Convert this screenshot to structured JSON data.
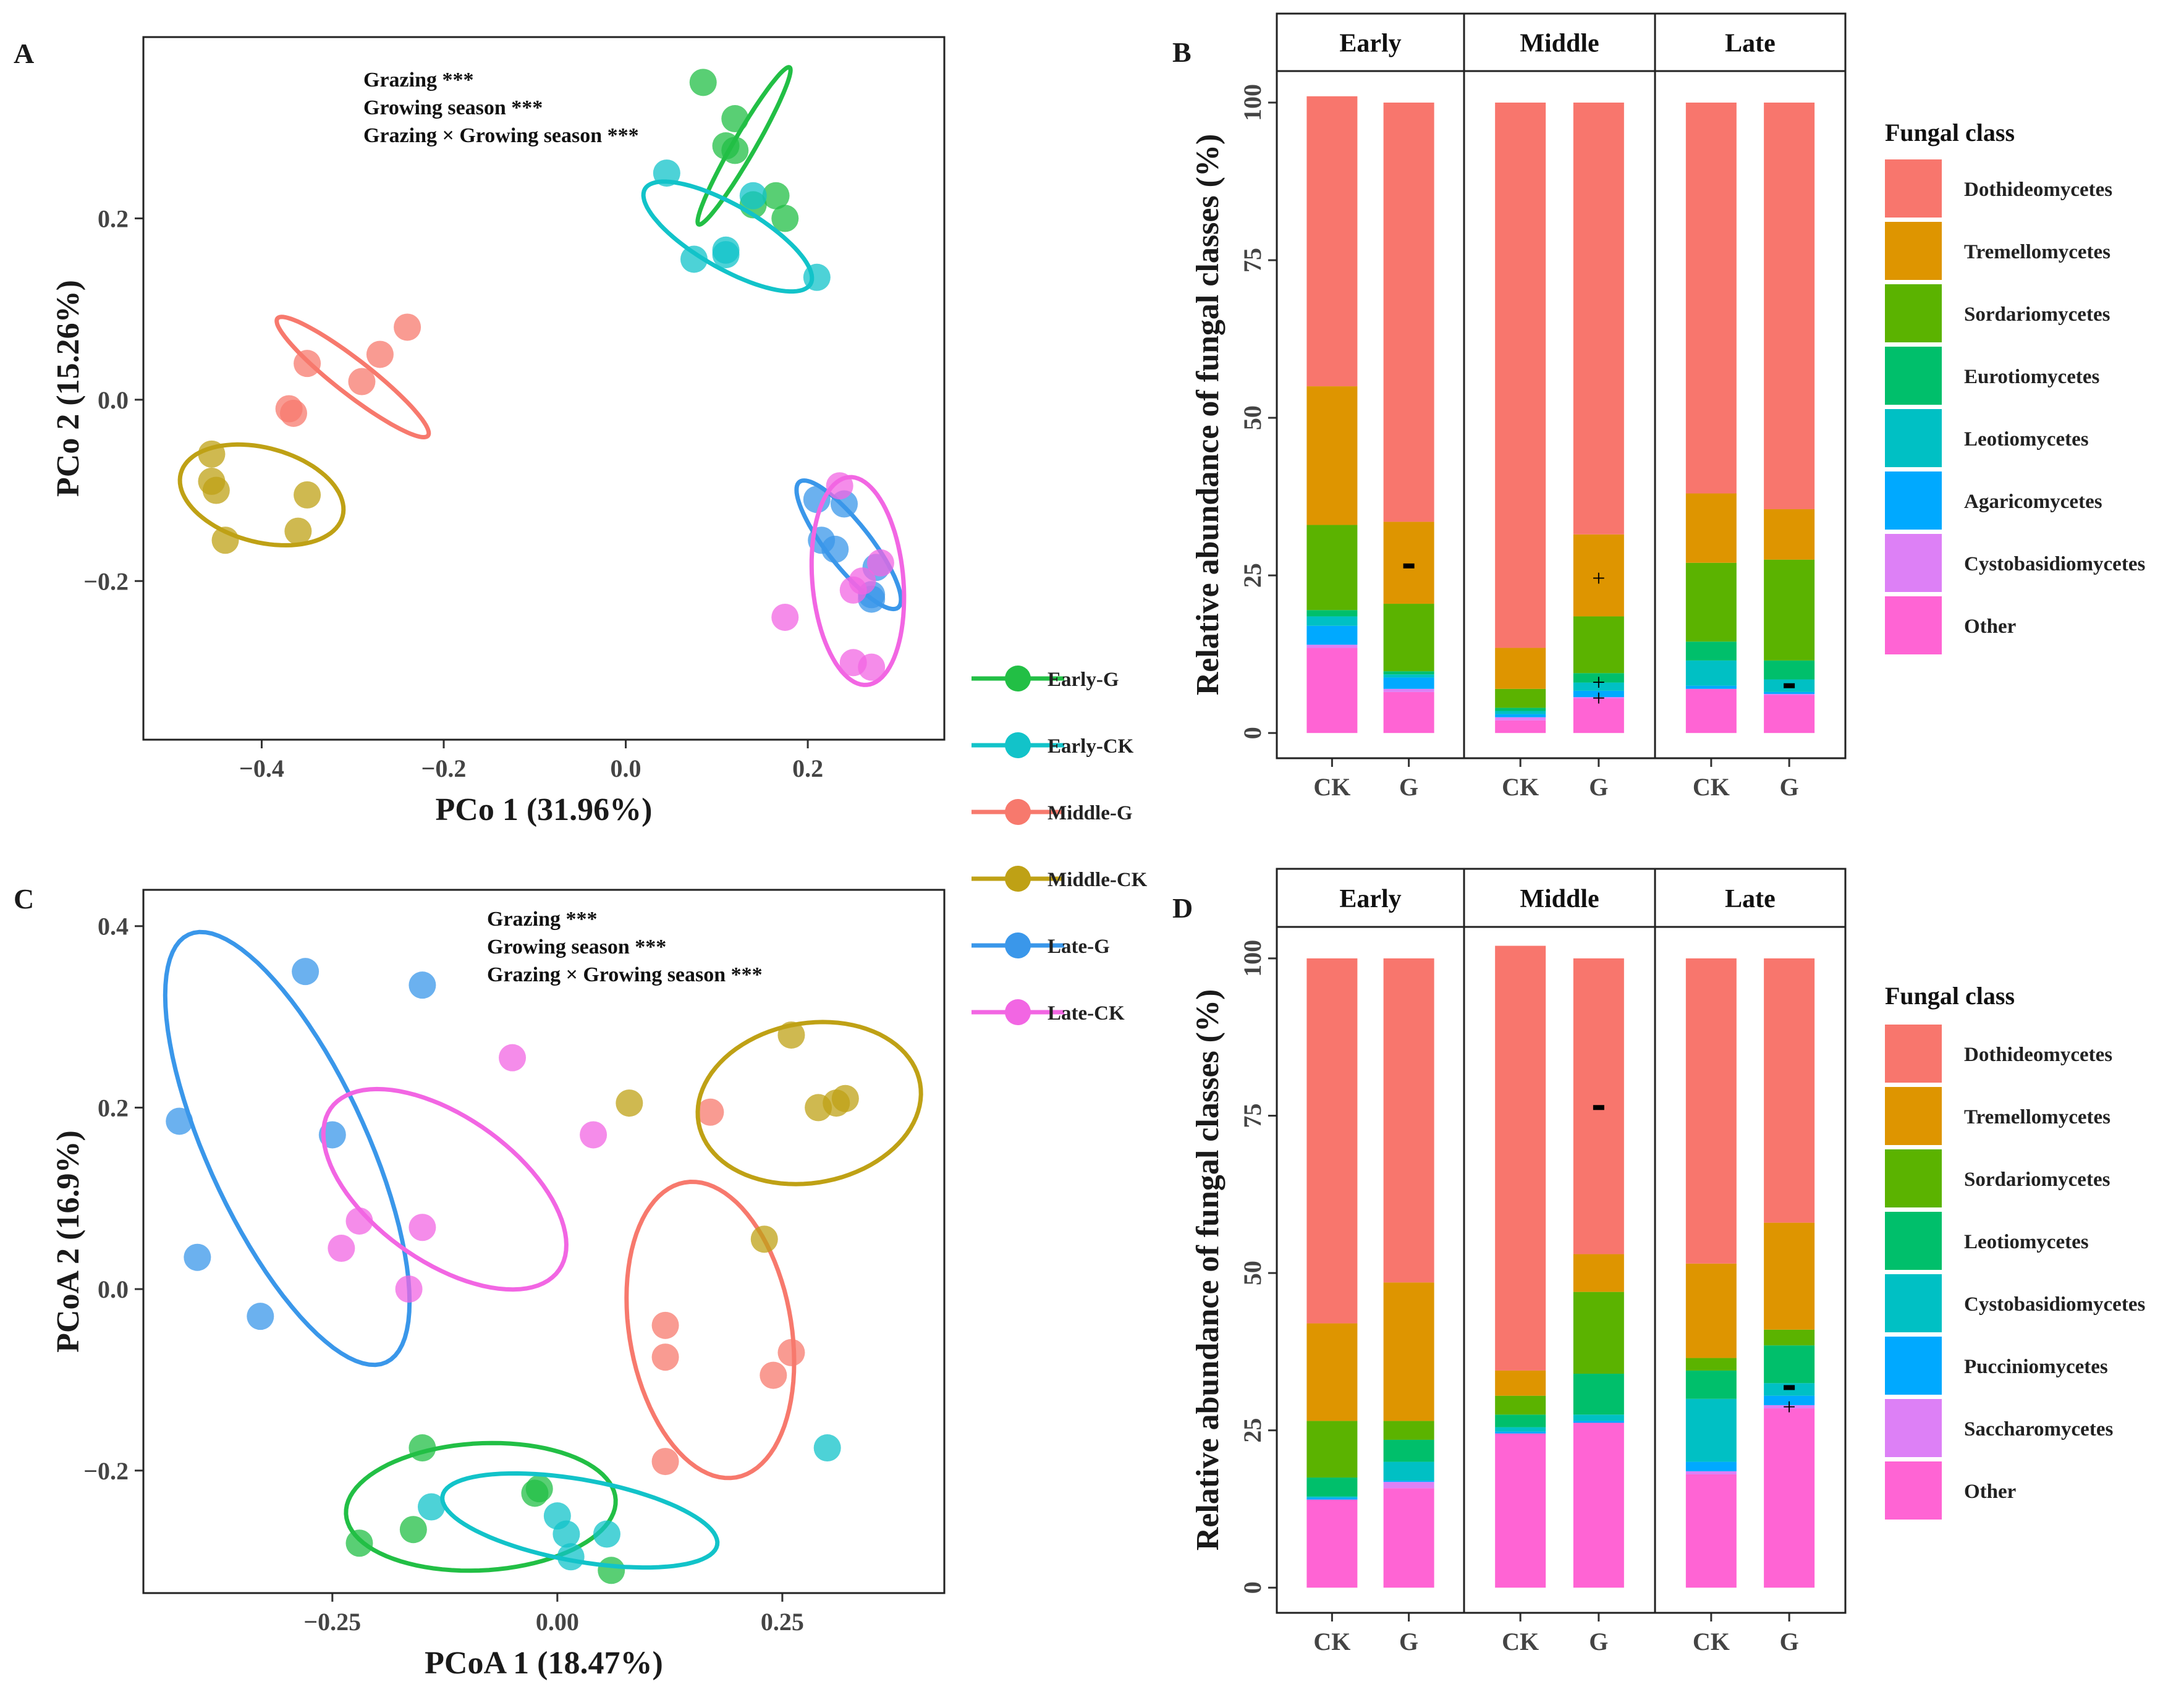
{
  "colors": {
    "Early-G": "#22BF45",
    "Early-CK": "#12C3C9",
    "Middle-G": "#F7796D",
    "Middle-CK": "#BFA115",
    "Late-G": "#3A97EA",
    "Late-CK": "#F266E3",
    "Dothideomycetes": "#F8766D",
    "Tremellomycetes": "#DE9500",
    "Sordariomycetes": "#5BB300",
    "Eurotiomycetes": "#00BF6B",
    "Leotiomycetes_B": "#00C0C4",
    "Leotiomycetes_D": "#00BF6B",
    "Cystobasidiomycetes_D": "#00C0C4",
    "Agaricomycetes": "#00A9FF",
    "Pucciniomycetes": "#00A9FF",
    "Cystobasidiomycetes_B": "#DD80F6",
    "Saccharomycetes": "#DD80F6",
    "Other": "#FF64D4"
  },
  "group_legend": {
    "items": [
      "Early-G",
      "Early-CK",
      "Middle-G",
      "Middle-CK",
      "Late-G",
      "Late-CK"
    ]
  },
  "chart_data": [
    {
      "panel": "A",
      "type": "scatter",
      "xlabel": "PCo 1 (31.96%)",
      "ylabel": "PCo 2 (15.26%)",
      "xlim": [
        -0.53,
        0.35
      ],
      "ylim": [
        -0.375,
        0.4
      ],
      "xticks": [
        -0.4,
        -0.2,
        0.0,
        0.2
      ],
      "xtick_labels": [
        "−0.4",
        "−0.2",
        "0.0",
        "0.2"
      ],
      "yticks": [
        -0.2,
        0.0,
        0.2
      ],
      "ytick_labels": [
        "−0.2",
        "0.0",
        "0.2"
      ],
      "stats": [
        "Grazing ***",
        "Growing season ***",
        "Grazing × Growing season ***"
      ],
      "series": [
        {
          "name": "Early-G",
          "points": [
            [
              0.085,
              0.35
            ],
            [
              0.12,
              0.31
            ],
            [
              0.11,
              0.28
            ],
            [
              0.12,
              0.275
            ],
            [
              0.165,
              0.225
            ],
            [
              0.14,
              0.215
            ],
            [
              0.175,
              0.2
            ]
          ],
          "ellipse": {
            "cx": 0.13,
            "cy": 0.28,
            "rx": 0.1,
            "ry": 0.012,
            "angle": 60
          }
        },
        {
          "name": "Early-CK",
          "points": [
            [
              0.045,
              0.25
            ],
            [
              0.075,
              0.155
            ],
            [
              0.11,
              0.165
            ],
            [
              0.11,
              0.16
            ],
            [
              0.14,
              0.225
            ],
            [
              0.21,
              0.135
            ]
          ],
          "ellipse": {
            "cx": 0.112,
            "cy": 0.18,
            "rx": 0.105,
            "ry": 0.035,
            "angle": -30
          }
        },
        {
          "name": "Middle-G",
          "points": [
            [
              -0.24,
              0.08
            ],
            [
              -0.27,
              0.05
            ],
            [
              -0.29,
              0.02
            ],
            [
              -0.35,
              0.04
            ],
            [
              -0.365,
              -0.015
            ],
            [
              -0.37,
              -0.01
            ]
          ],
          "ellipse": {
            "cx": -0.3,
            "cy": 0.025,
            "rx": 0.105,
            "ry": 0.019,
            "angle": -38
          }
        },
        {
          "name": "Middle-CK",
          "points": [
            [
              -0.455,
              -0.06
            ],
            [
              -0.455,
              -0.09
            ],
            [
              -0.45,
              -0.1
            ],
            [
              -0.35,
              -0.105
            ],
            [
              -0.36,
              -0.145
            ],
            [
              -0.44,
              -0.155
            ]
          ],
          "ellipse": {
            "cx": -0.4,
            "cy": -0.105,
            "rx": 0.092,
            "ry": 0.052,
            "angle": -15
          }
        },
        {
          "name": "Late-G",
          "points": [
            [
              0.21,
              -0.11
            ],
            [
              0.24,
              -0.115
            ],
            [
              0.215,
              -0.155
            ],
            [
              0.23,
              -0.165
            ],
            [
              0.275,
              -0.185
            ],
            [
              0.27,
              -0.215
            ],
            [
              0.27,
              -0.22
            ]
          ],
          "ellipse": {
            "cx": 0.245,
            "cy": -0.16,
            "rx": 0.088,
            "ry": 0.024,
            "angle": -52
          }
        },
        {
          "name": "Late-CK",
          "points": [
            [
              0.235,
              -0.095
            ],
            [
              0.28,
              -0.18
            ],
            [
              0.26,
              -0.2
            ],
            [
              0.25,
              -0.21
            ],
            [
              0.175,
              -0.24
            ],
            [
              0.25,
              -0.29
            ],
            [
              0.27,
              -0.295
            ]
          ],
          "ellipse": {
            "cx": 0.255,
            "cy": -0.2,
            "rx": 0.115,
            "ry": 0.05,
            "angle": -85
          }
        }
      ]
    },
    {
      "panel": "B",
      "type": "stacked_bar",
      "ylabel": "Relative abundance of fungal classes (%)",
      "ylim": [
        -4,
        105
      ],
      "yticks": [
        0,
        25,
        50,
        75,
        100
      ],
      "facets": [
        "Early",
        "Middle",
        "Late"
      ],
      "categories": [
        "CK",
        "G"
      ],
      "legend_title": "Fungal class",
      "classes": [
        "Dothideomycetes",
        "Tremellomycetes",
        "Sordariomycetes",
        "Eurotiomycetes",
        "Leotiomycetes",
        "Agaricomycetes",
        "Cystobasidiomycetes",
        "Other"
      ],
      "class_colors": [
        "Dothideomycetes",
        "Tremellomycetes",
        "Sordariomycetes",
        "Eurotiomycetes",
        "Leotiomycetes_B",
        "Agaricomycetes",
        "Cystobasidiomycetes_B",
        "Other"
      ],
      "bars": [
        {
          "facet": "Early",
          "cat": "CK",
          "values": [
            46.0,
            22.0,
            13.5,
            1.0,
            1.5,
            3.0,
            0.5,
            13.5
          ]
        },
        {
          "facet": "Early",
          "cat": "G",
          "values": [
            66.5,
            13.0,
            10.7,
            0.5,
            0.5,
            1.8,
            0.5,
            6.5
          ]
        },
        {
          "facet": "Middle",
          "cat": "CK",
          "values": [
            86.5,
            6.5,
            3.0,
            0.5,
            0.5,
            0.5,
            0.5,
            2.0
          ]
        },
        {
          "facet": "Middle",
          "cat": "G",
          "values": [
            68.5,
            13.0,
            9.0,
            1.5,
            1.3,
            1.0,
            0.2,
            5.5
          ]
        },
        {
          "facet": "Late",
          "cat": "CK",
          "values": [
            62.0,
            11.0,
            12.5,
            3.0,
            4.0,
            0.5,
            0.0,
            7.0
          ]
        },
        {
          "facet": "Late",
          "cat": "G",
          "values": [
            64.5,
            8.0,
            16.0,
            3.0,
            2.0,
            0.3,
            0.2,
            6.0
          ]
        }
      ],
      "annotations": [
        {
          "facet": "Early",
          "cat": "G",
          "y": 26.5,
          "text": "-"
        },
        {
          "facet": "Middle",
          "cat": "G",
          "y": 24.5,
          "text": "+"
        },
        {
          "facet": "Middle",
          "cat": "G",
          "y": 8.0,
          "text": "+"
        },
        {
          "facet": "Middle",
          "cat": "G",
          "y": 5.5,
          "text": "+"
        },
        {
          "facet": "Late",
          "cat": "G",
          "y": 7.5,
          "text": "-"
        }
      ]
    },
    {
      "panel": "C",
      "type": "scatter",
      "xlabel": "PCoA 1 (18.47%)",
      "ylabel": "PCoA 2 (16.9%)",
      "xlim": [
        -0.46,
        0.43
      ],
      "ylim": [
        -0.335,
        0.44
      ],
      "xticks": [
        -0.25,
        0.0,
        0.25
      ],
      "xtick_labels": [
        "−0.25",
        "0.00",
        "0.25"
      ],
      "yticks": [
        -0.2,
        0.0,
        0.2,
        0.4
      ],
      "ytick_labels": [
        "−0.2",
        "0.0",
        "0.2",
        "0.4"
      ],
      "stats": [
        "Grazing ***",
        "Growing season ***",
        "Grazing × Growing season ***"
      ],
      "series": [
        {
          "name": "Early-G",
          "points": [
            [
              -0.15,
              -0.175
            ],
            [
              -0.22,
              -0.28
            ],
            [
              -0.16,
              -0.265
            ],
            [
              -0.02,
              -0.22
            ],
            [
              -0.025,
              -0.225
            ],
            [
              0.06,
              -0.31
            ]
          ],
          "ellipse": {
            "cx": -0.085,
            "cy": -0.24,
            "rx": 0.15,
            "ry": 0.07,
            "angle": 3
          }
        },
        {
          "name": "Early-CK",
          "points": [
            [
              -0.14,
              -0.24
            ],
            [
              0.0,
              -0.25
            ],
            [
              0.01,
              -0.27
            ],
            [
              0.015,
              -0.295
            ],
            [
              0.055,
              -0.27
            ],
            [
              0.3,
              -0.175
            ]
          ],
          "ellipse": {
            "cx": 0.025,
            "cy": -0.255,
            "rx": 0.155,
            "ry": 0.045,
            "angle": -10
          }
        },
        {
          "name": "Middle-G",
          "points": [
            [
              0.17,
              0.195
            ],
            [
              0.12,
              -0.04
            ],
            [
              0.12,
              -0.075
            ],
            [
              0.26,
              -0.07
            ],
            [
              0.24,
              -0.095
            ],
            [
              0.12,
              -0.19
            ]
          ],
          "ellipse": {
            "cx": 0.17,
            "cy": -0.045,
            "rx": 0.165,
            "ry": 0.09,
            "angle": -80
          }
        },
        {
          "name": "Middle-CK",
          "points": [
            [
              0.08,
              0.205
            ],
            [
              0.26,
              0.28
            ],
            [
              0.29,
              0.2
            ],
            [
              0.31,
              0.205
            ],
            [
              0.32,
              0.21
            ],
            [
              0.23,
              0.055
            ]
          ],
          "ellipse": {
            "cx": 0.28,
            "cy": 0.205,
            "rx": 0.125,
            "ry": 0.088,
            "angle": 10
          }
        },
        {
          "name": "Late-G",
          "points": [
            [
              -0.28,
              0.35
            ],
            [
              -0.15,
              0.335
            ],
            [
              -0.42,
              0.185
            ],
            [
              -0.25,
              0.17
            ],
            [
              -0.4,
              0.035
            ],
            [
              -0.33,
              -0.03
            ]
          ],
          "ellipse": {
            "cx": -0.3,
            "cy": 0.155,
            "rx": 0.26,
            "ry": 0.088,
            "angle": -65
          }
        },
        {
          "name": "Late-CK",
          "points": [
            [
              -0.05,
              0.255
            ],
            [
              0.04,
              0.17
            ],
            [
              -0.22,
              0.075
            ],
            [
              -0.15,
              0.068
            ],
            [
              -0.24,
              0.045
            ],
            [
              -0.165,
              0.0
            ]
          ],
          "ellipse": {
            "cx": -0.125,
            "cy": 0.11,
            "rx": 0.155,
            "ry": 0.08,
            "angle": -35
          }
        }
      ]
    },
    {
      "panel": "D",
      "type": "stacked_bar",
      "ylabel": "Relative abundance of fungal classes (%)",
      "ylim": [
        -4,
        105
      ],
      "yticks": [
        0,
        25,
        50,
        75,
        100
      ],
      "facets": [
        "Early",
        "Middle",
        "Late"
      ],
      "categories": [
        "CK",
        "G"
      ],
      "legend_title": "Fungal class",
      "classes": [
        "Dothideomycetes",
        "Tremellomycetes",
        "Sordariomycetes",
        "Leotiomycetes",
        "Cystobasidiomycetes",
        "Pucciniomycetes",
        "Saccharomycetes",
        "Other"
      ],
      "class_colors": [
        "Dothideomycetes",
        "Tremellomycetes",
        "Sordariomycetes",
        "Leotiomycetes_D",
        "Cystobasidiomycetes_D",
        "Pucciniomycetes",
        "Saccharomycetes",
        "Other"
      ],
      "bars": [
        {
          "facet": "Early",
          "cat": "CK",
          "values": [
            58.0,
            15.5,
            9.0,
            3.0,
            0.2,
            0.3,
            0.0,
            14.0
          ]
        },
        {
          "facet": "Early",
          "cat": "G",
          "values": [
            51.5,
            22.0,
            3.0,
            3.5,
            3.0,
            0.2,
            1.0,
            15.8
          ]
        },
        {
          "facet": "Middle",
          "cat": "CK",
          "values": [
            67.5,
            4.0,
            3.0,
            2.0,
            0.7,
            0.3,
            0.0,
            24.5
          ]
        },
        {
          "facet": "Middle",
          "cat": "G",
          "values": [
            47.0,
            6.0,
            13.0,
            6.5,
            1.0,
            0.3,
            0.0,
            26.2
          ]
        },
        {
          "facet": "Late",
          "cat": "CK",
          "values": [
            48.5,
            15.0,
            2.0,
            4.5,
            10.0,
            1.5,
            0.5,
            18.0
          ]
        },
        {
          "facet": "Late",
          "cat": "G",
          "values": [
            42.0,
            17.0,
            2.5,
            6.0,
            2.0,
            1.5,
            0.5,
            28.5
          ]
        }
      ],
      "annotations": [
        {
          "facet": "Middle",
          "cat": "G",
          "y": 76.3,
          "text": "-"
        },
        {
          "facet": "Late",
          "cat": "G",
          "y": 31.8,
          "text": "-"
        },
        {
          "facet": "Late",
          "cat": "G",
          "y": 28.7,
          "text": "+"
        }
      ]
    }
  ]
}
